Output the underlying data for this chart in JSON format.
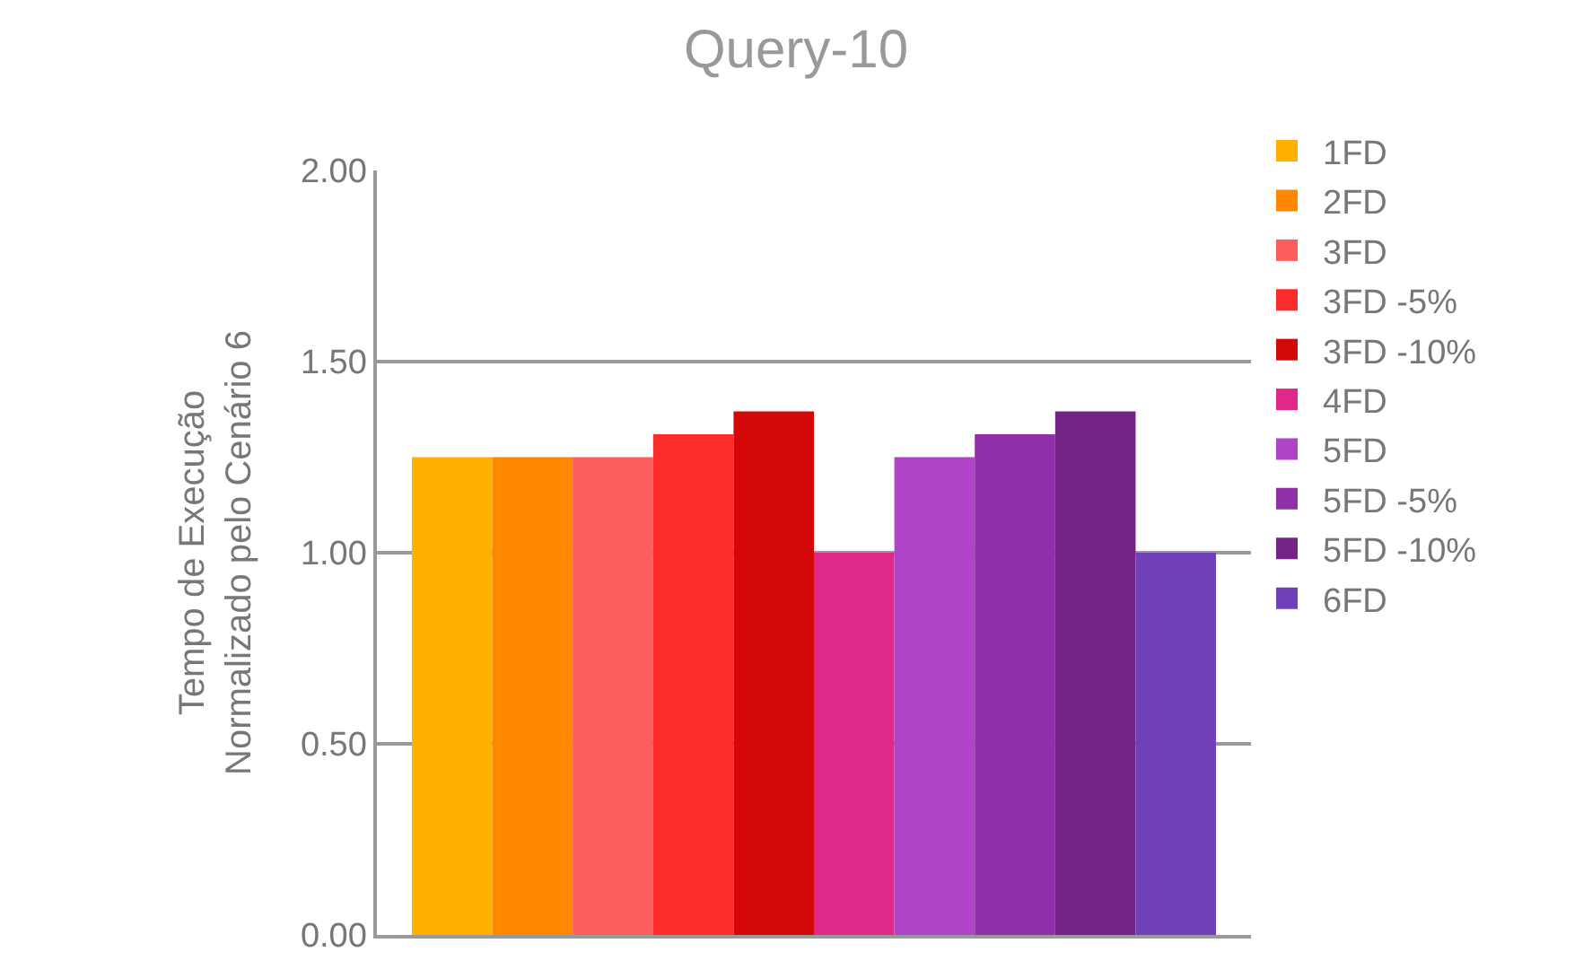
{
  "chart_data": {
    "type": "bar",
    "title": "Query-10",
    "ylabel": "Tempo de Execução\nNormalizado pelo Cenário 6",
    "categories": [
      null
    ],
    "series": [
      {
        "name": "1FD",
        "color": "#ffb000",
        "values": [
          1.25
        ]
      },
      {
        "name": "2FD",
        "color": "#ff8800",
        "values": [
          1.25
        ]
      },
      {
        "name": "3FD",
        "color": "#fc5e5e",
        "values": [
          1.25
        ]
      },
      {
        "name": "3FD -5%",
        "color": "#fc2c2c",
        "values": [
          1.31
        ]
      },
      {
        "name": "3FD -10%",
        "color": "#d40808",
        "values": [
          1.37
        ]
      },
      {
        "name": "4FD",
        "color": "#e0288a",
        "values": [
          1.0
        ]
      },
      {
        "name": "5FD",
        "color": "#b044c8",
        "values": [
          1.25
        ]
      },
      {
        "name": "5FD -5%",
        "color": "#9030a8",
        "values": [
          1.31
        ]
      },
      {
        "name": "5FD -10%",
        "color": "#742484",
        "values": [
          1.37
        ]
      },
      {
        "name": "6FD",
        "color": "#7040b8",
        "values": [
          1.0
        ]
      }
    ],
    "ylim": [
      0,
      2
    ],
    "yticks": [
      {
        "value": 0,
        "label": "0.00"
      },
      {
        "value": 0.5,
        "label": "0.50"
      },
      {
        "value": 1,
        "label": "1.00"
      },
      {
        "value": 1.5,
        "label": "1.50"
      },
      {
        "value": 2,
        "label": "2.00"
      }
    ],
    "grid": "y",
    "legend": "top right"
  }
}
